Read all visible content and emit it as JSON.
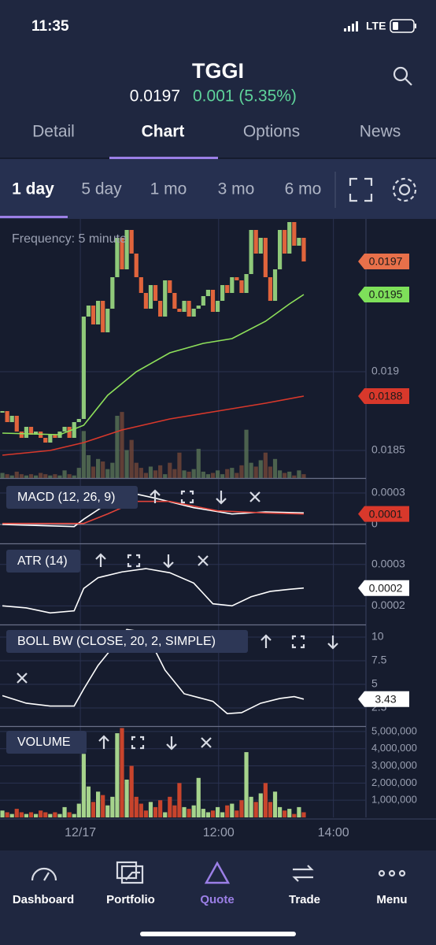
{
  "status": {
    "time": "11:35",
    "network": "LTE"
  },
  "header": {
    "symbol": "TGGI",
    "price": "0.0197",
    "change": "0.001 (5.35%)"
  },
  "tabs": [
    "Detail",
    "Chart",
    "Options",
    "News"
  ],
  "ranges": [
    "1 day",
    "5 day",
    "1 mo",
    "3 mo",
    "6 mo"
  ],
  "nav": [
    "Dashboard",
    "Portfolio",
    "Quote",
    "Trade",
    "Menu"
  ],
  "time_axis": {
    "xlim": [
      0,
      76.5
    ],
    "xticks": [
      {
        "value": 16.8,
        "label": "12/17"
      },
      {
        "value": 45.7,
        "label": "12:00"
      },
      {
        "value": 69.7,
        "label": "14:00"
      }
    ]
  },
  "chart_data": [
    {
      "type": "candlestick",
      "label": "Frequency: 5 minute",
      "up_color": "#8fc97a",
      "down_color": "#e0643c",
      "values": [
        0.01875,
        0.01868,
        0.01872,
        0.01862,
        0.01858,
        0.01865,
        0.0186,
        0.01862,
        0.01858,
        0.01855,
        0.0186,
        0.01858,
        0.01862,
        0.01865,
        0.01858,
        0.01868,
        0.0187,
        0.01935,
        0.01942,
        0.0193,
        0.01945,
        0.01925,
        0.0194,
        0.0196,
        0.01985,
        0.01965,
        0.0199,
        0.01975,
        0.0196,
        0.0195,
        0.0194,
        0.01955,
        0.01945,
        0.01935,
        0.01958,
        0.0195,
        0.0194,
        0.01938,
        0.01945,
        0.01935,
        0.0194,
        0.01942,
        0.01948,
        0.01952,
        0.01938,
        0.01945,
        0.01955,
        0.0195,
        0.0196,
        0.01958,
        0.0195,
        0.01962,
        0.0199,
        0.01975,
        0.01985,
        0.0196,
        0.01945,
        0.01965,
        0.0199,
        0.01975,
        0.01995,
        0.0198,
        0.01985,
        0.0197
      ],
      "lines": [
        {
          "color": "#8ee05a",
          "x": [
            0,
            12,
            17,
            22,
            28,
            35,
            42,
            48,
            55,
            60,
            63
          ],
          "values": [
            0.01861,
            0.0186,
            0.01866,
            0.01885,
            0.019,
            0.01912,
            0.01918,
            0.01921,
            0.01932,
            0.01943,
            0.01949
          ]
        },
        {
          "color": "#d8382b",
          "x": [
            0,
            10,
            17,
            25,
            35,
            45,
            55,
            63
          ],
          "values": [
            0.01847,
            0.0185,
            0.01855,
            0.01863,
            0.0187,
            0.01875,
            0.0188,
            0.018845
          ]
        }
      ],
      "ylim": [
        0.018325,
        0.01997
      ],
      "yticks": [
        0.0185,
        0.019
      ],
      "tags": [
        {
          "value": 0.0197,
          "label": "0.0197",
          "color": "#e8704a",
          "text_color": "#1a1a1a"
        },
        {
          "value": 0.01949,
          "label": "0.0195",
          "color": "#7ee05a",
          "text_color": "#1a1a1a"
        },
        {
          "value": 0.018845,
          "label": "0.0188",
          "color": "#d8382b",
          "text_color": "#1a1a1a"
        }
      ]
    },
    {
      "type": "line",
      "title": "MACD (12, 26, 9)",
      "lines": [
        {
          "color": "#ffffff",
          "x": [
            0,
            15,
            17,
            22,
            26,
            32,
            40,
            48,
            55,
            63
          ],
          "values": [
            0,
            -2e-05,
            5e-05,
            0.0002,
            0.00031,
            0.00025,
            0.00016,
            0.0001,
            0.00012,
            0.00011
          ]
        },
        {
          "color": "#e0433a",
          "x": [
            0,
            17,
            22,
            28,
            35,
            45,
            55,
            63
          ],
          "values": [
            1e-05,
            1e-05,
            0.0001,
            0.00022,
            0.00022,
            0.00013,
            0.00011,
            0.0001
          ]
        }
      ],
      "ylim": [
        -0.00018,
        0.000435
      ],
      "yticks": [
        0.0003,
        0
      ],
      "tags": [
        {
          "value": 0.0001,
          "label": "0.0001",
          "color": "#d8382b",
          "text_color": "#1a1a1a"
        }
      ]
    },
    {
      "type": "line",
      "title": "ATR (14)",
      "lines": [
        {
          "color": "#ffffff",
          "x": [
            0,
            5,
            10,
            15,
            17,
            20,
            25,
            30,
            35,
            40,
            44,
            48,
            52,
            56,
            60,
            63
          ],
          "values": [
            0.0002,
            0.000195,
            0.000183,
            0.000188,
            0.000242,
            0.000268,
            0.000282,
            0.00029,
            0.00028,
            0.000255,
            0.000205,
            0.0002,
            0.000222,
            0.000235,
            0.00024,
            0.000243
          ]
        }
      ],
      "ylim": [
        0.000155,
        0.000349
      ],
      "yticks": [
        0.0003,
        0.0002
      ],
      "tags": [
        {
          "value": 0.000243,
          "label": "0.0002",
          "color": "#ffffff",
          "text_color": "#1a1a1a"
        }
      ]
    },
    {
      "type": "line",
      "title": "BOLL BW (CLOSE, 20, 2, SIMPLE)",
      "lines": [
        {
          "color": "#ffffff",
          "x": [
            0,
            5,
            10,
            15,
            17,
            20,
            24,
            26,
            30,
            34,
            38,
            44,
            47,
            50,
            54,
            58,
            61,
            63
          ],
          "values": [
            3.8,
            3.0,
            2.7,
            2.7,
            4.5,
            7.0,
            9.5,
            10.8,
            10.5,
            6.5,
            4.0,
            3.2,
            1.9,
            2.0,
            3.0,
            3.5,
            3.7,
            3.43
          ]
        }
      ],
      "ylim": [
        0.58,
        11.25
      ],
      "yticks": [
        10,
        7.5,
        5,
        2.5
      ],
      "tags": [
        {
          "value": 3.43,
          "label": "3.43",
          "color": "#ffffff",
          "text_color": "#1a1a1a"
        }
      ]
    },
    {
      "type": "bar",
      "title": "VOLUME",
      "values": [
        400000,
        300000,
        200000,
        500000,
        300000,
        200000,
        300000,
        200000,
        400000,
        300000,
        200000,
        300000,
        200000,
        600000,
        300000,
        200000,
        800000,
        3700000,
        1800000,
        900000,
        1500000,
        1300000,
        700000,
        1200000,
        4900000,
        5200000,
        2200000,
        3000000,
        1200000,
        800000,
        400000,
        900000,
        600000,
        1000000,
        300000,
        1200000,
        700000,
        2000000,
        600000,
        500000,
        700000,
        2300000,
        500000,
        300000,
        400000,
        600000,
        300000,
        700000,
        800000,
        400000,
        1000000,
        3800000,
        1200000,
        900000,
        1400000,
        2000000,
        900000,
        1500000,
        600000,
        400000,
        500000,
        200000,
        600000,
        300000
      ],
      "up_color": "#a6d38c",
      "down_color": "#c8442c",
      "ylim": [
        0,
        5270000
      ],
      "yticks": [
        {
          "value": 5000000,
          "label": "5,000,000"
        },
        {
          "value": 4000000,
          "label": "4,000,000"
        },
        {
          "value": 3000000,
          "label": "3,000,000"
        },
        {
          "value": 2000000,
          "label": "2,000,000"
        },
        {
          "value": 1000000,
          "label": "1,000,000"
        }
      ]
    }
  ]
}
